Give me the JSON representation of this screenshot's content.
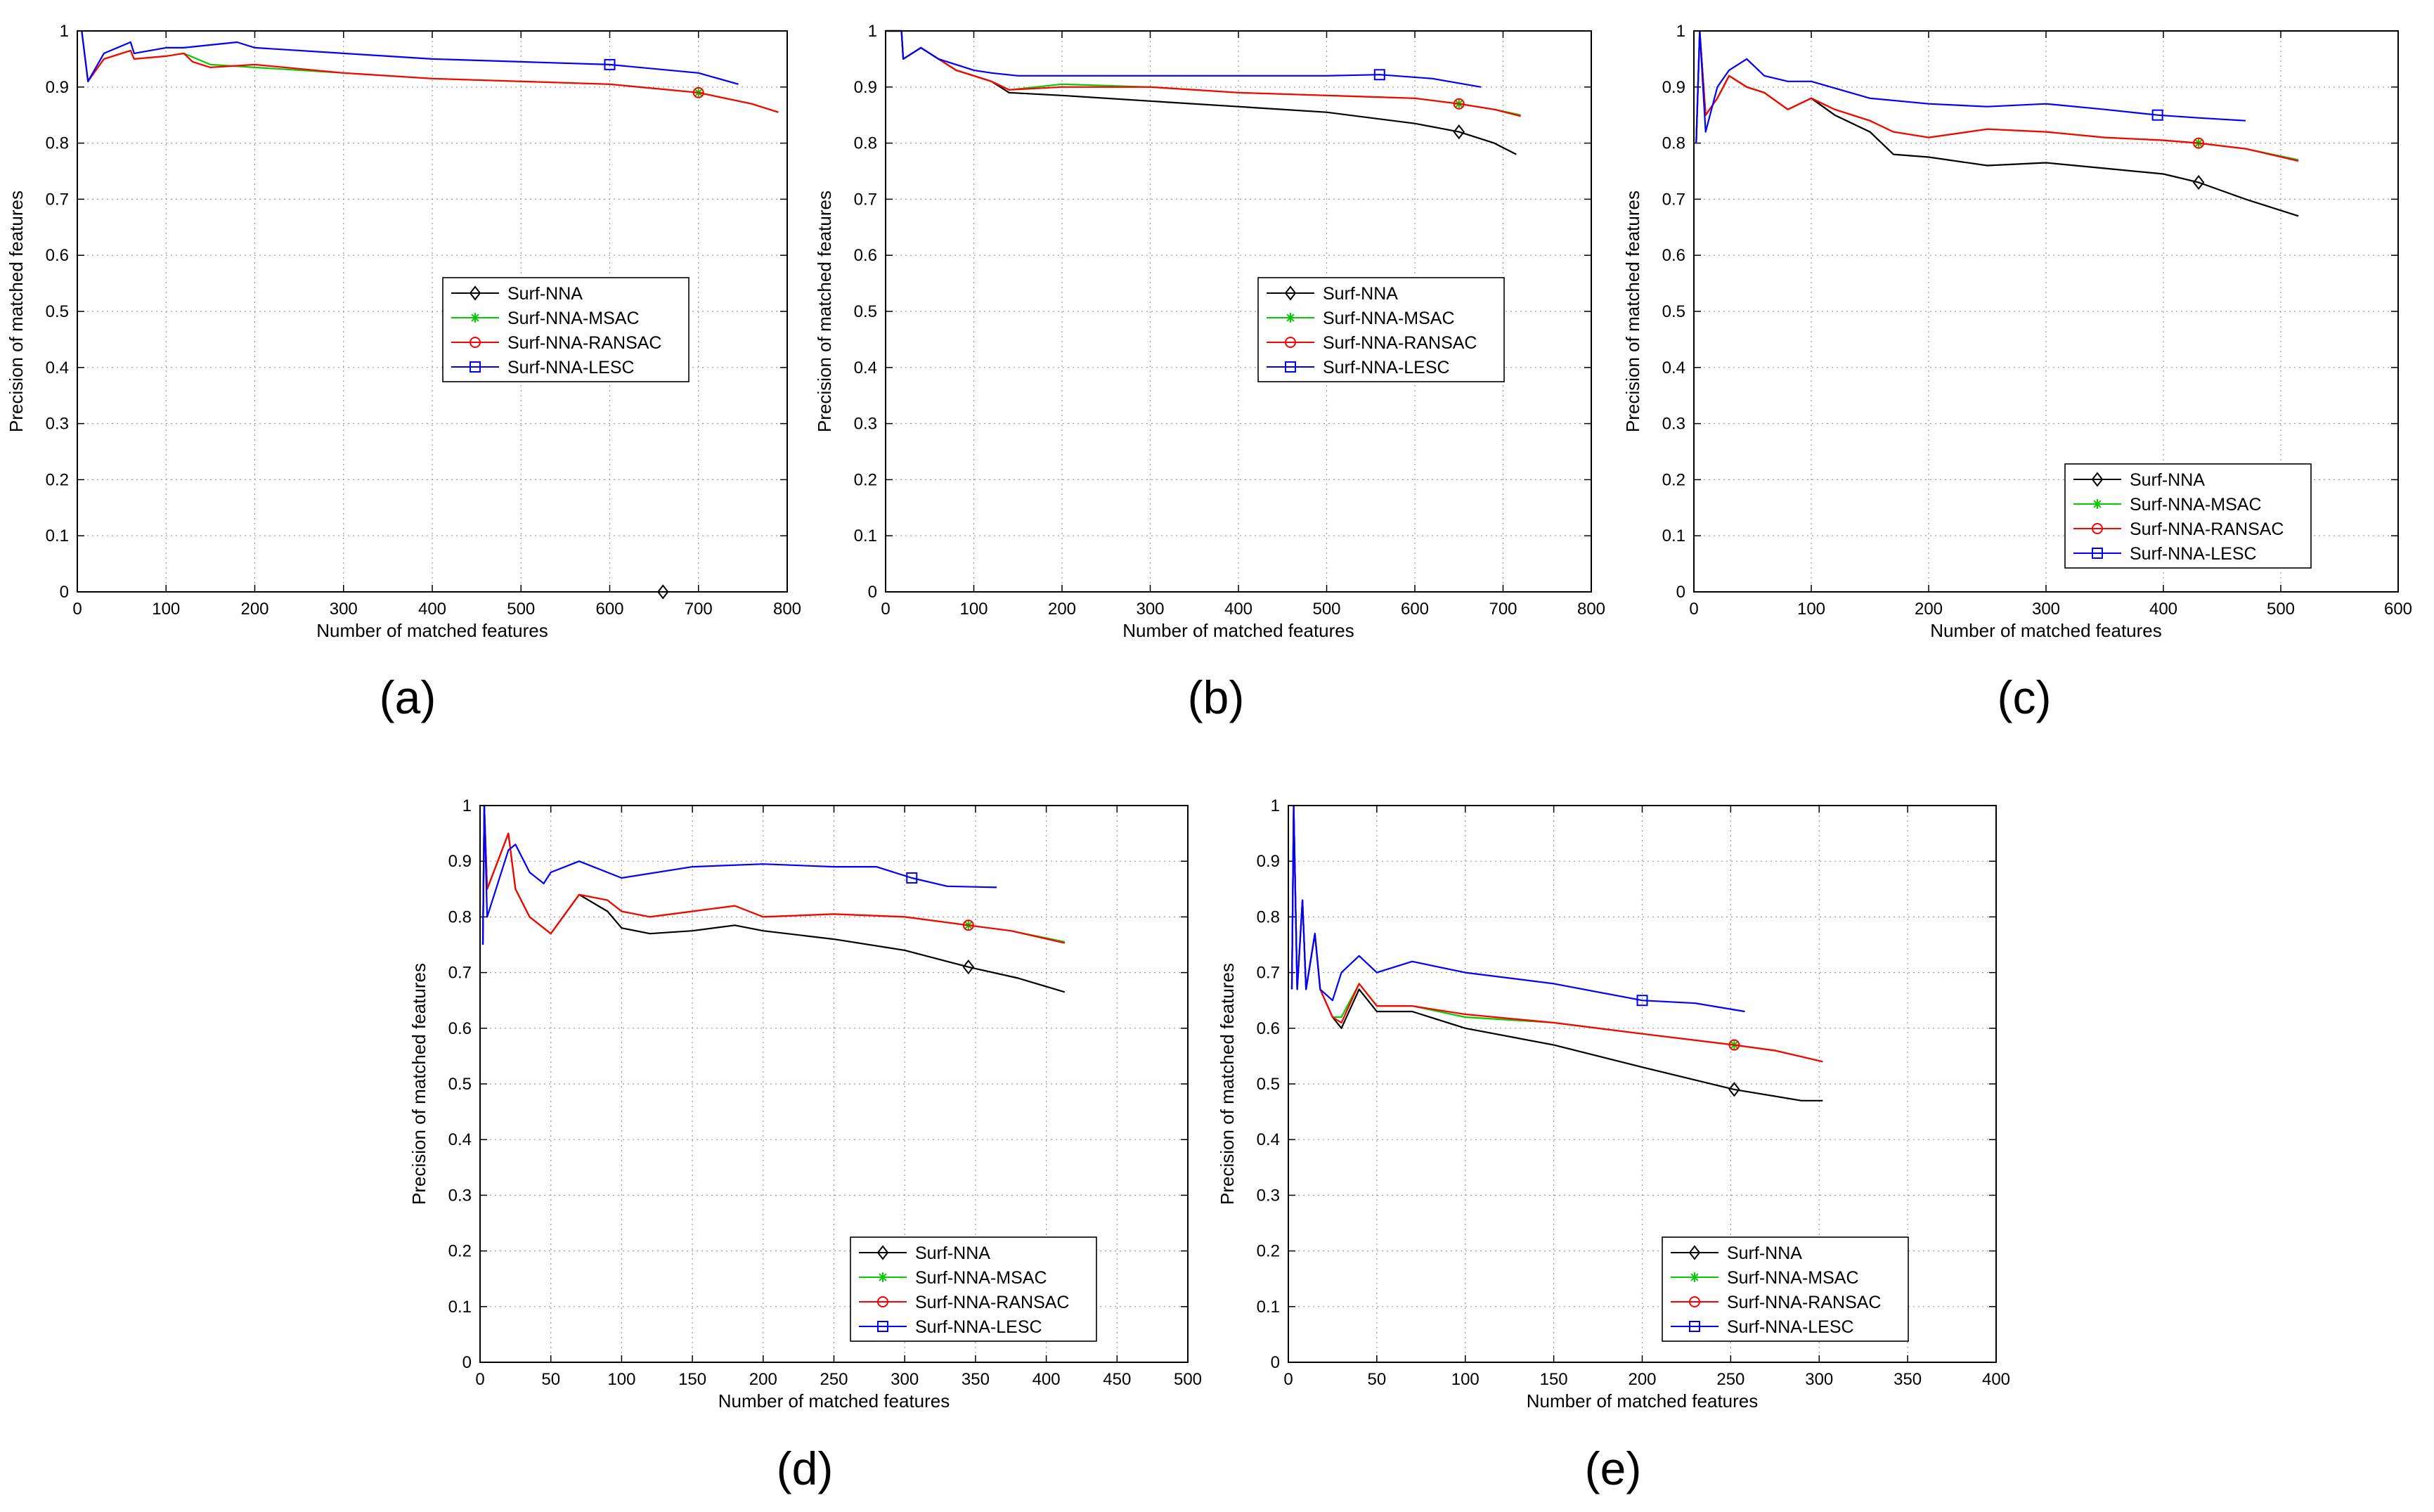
{
  "figure": {
    "panel_labels": [
      "(a)",
      "(b)",
      "(c)",
      "(d)",
      "(e)"
    ]
  },
  "colors": {
    "Surf-NNA": "#000000",
    "Surf-NNA-MSAC": "#00cc00",
    "Surf-NNA-RANSAC": "#ff0000",
    "Surf-NNA-LESC": "#0000ff",
    "grid": "#999999"
  },
  "chart_data": [
    {
      "type": "line",
      "label": "(a)",
      "xlabel": "Number of matched features",
      "ylabel": "Precision of matched features",
      "xlim": [
        0,
        800
      ],
      "ylim": [
        0,
        1
      ],
      "xticks": [
        "0",
        "100",
        "200",
        "300",
        "400",
        "500",
        "600",
        "700",
        "800"
      ],
      "yticks": [
        "0",
        "0.1",
        "0.2",
        "0.3",
        "0.4",
        "0.5",
        "0.6",
        "0.7",
        "0.8",
        "0.9",
        "1"
      ],
      "grid": true,
      "legend_position": "center",
      "series": [
        {
          "name": "Surf-NNA",
          "marker": "diamond",
          "x": [
            660
          ],
          "y": [
            0.0
          ]
        },
        {
          "name": "Surf-NNA-MSAC",
          "marker": "star",
          "x": [
            5,
            12,
            30,
            60,
            64,
            100,
            120,
            150,
            200,
            300,
            400,
            500,
            600,
            700,
            760,
            790
          ],
          "y": [
            1.0,
            0.91,
            0.95,
            0.965,
            0.95,
            0.955,
            0.96,
            0.94,
            0.935,
            0.925,
            0.915,
            0.91,
            0.905,
            0.89,
            0.87,
            0.855
          ]
        },
        {
          "name": "Surf-NNA-RANSAC",
          "marker": "circle",
          "x": [
            5,
            12,
            30,
            60,
            64,
            100,
            120,
            130,
            150,
            200,
            300,
            400,
            500,
            600,
            700,
            760,
            790
          ],
          "y": [
            1.0,
            0.91,
            0.95,
            0.965,
            0.95,
            0.955,
            0.96,
            0.945,
            0.935,
            0.94,
            0.925,
            0.915,
            0.91,
            0.905,
            0.89,
            0.87,
            0.855
          ]
        },
        {
          "name": "Surf-NNA-LESC",
          "marker": "square",
          "x": [
            5,
            12,
            30,
            60,
            64,
            100,
            120,
            180,
            200,
            300,
            400,
            500,
            600,
            700,
            745
          ],
          "y": [
            1.0,
            0.91,
            0.96,
            0.98,
            0.96,
            0.97,
            0.97,
            0.98,
            0.97,
            0.96,
            0.95,
            0.945,
            0.94,
            0.925,
            0.905
          ]
        }
      ]
    },
    {
      "type": "line",
      "label": "(b)",
      "xlabel": "Number of matched features",
      "ylabel": "Precision of matched features",
      "xlim": [
        0,
        800
      ],
      "ylim": [
        0,
        1
      ],
      "xticks": [
        "0",
        "100",
        "200",
        "300",
        "400",
        "500",
        "600",
        "700",
        "800"
      ],
      "yticks": [
        "0",
        "0.1",
        "0.2",
        "0.3",
        "0.4",
        "0.5",
        "0.6",
        "0.7",
        "0.8",
        "0.9",
        "1"
      ],
      "grid": true,
      "legend_position": "center",
      "series": [
        {
          "name": "Surf-NNA",
          "marker": "diamond",
          "x": [
            0,
            18,
            20,
            40,
            60,
            80,
            100,
            120,
            140,
            200,
            300,
            400,
            500,
            600,
            650,
            690,
            715
          ],
          "y": [
            1.0,
            1.0,
            0.95,
            0.97,
            0.95,
            0.93,
            0.92,
            0.91,
            0.89,
            0.885,
            0.875,
            0.865,
            0.855,
            0.835,
            0.82,
            0.8,
            0.78
          ]
        },
        {
          "name": "Surf-NNA-MSAC",
          "marker": "star",
          "x": [
            0,
            18,
            20,
            40,
            60,
            80,
            100,
            120,
            140,
            200,
            300,
            400,
            500,
            600,
            650,
            690,
            720
          ],
          "y": [
            1.0,
            1.0,
            0.95,
            0.97,
            0.95,
            0.93,
            0.92,
            0.91,
            0.895,
            0.905,
            0.9,
            0.89,
            0.885,
            0.88,
            0.87,
            0.86,
            0.85
          ]
        },
        {
          "name": "Surf-NNA-RANSAC",
          "marker": "circle",
          "x": [
            0,
            18,
            20,
            40,
            60,
            80,
            100,
            120,
            140,
            200,
            300,
            400,
            500,
            600,
            650,
            690,
            720
          ],
          "y": [
            1.0,
            1.0,
            0.95,
            0.97,
            0.95,
            0.93,
            0.92,
            0.91,
            0.895,
            0.9,
            0.9,
            0.89,
            0.885,
            0.88,
            0.87,
            0.86,
            0.848
          ]
        },
        {
          "name": "Surf-NNA-LESC",
          "marker": "square",
          "x": [
            0,
            18,
            20,
            40,
            60,
            80,
            100,
            120,
            150,
            200,
            300,
            400,
            500,
            560,
            620,
            675
          ],
          "y": [
            1.0,
            1.0,
            0.95,
            0.97,
            0.95,
            0.94,
            0.93,
            0.925,
            0.92,
            0.92,
            0.92,
            0.92,
            0.92,
            0.922,
            0.915,
            0.9
          ]
        }
      ]
    },
    {
      "type": "line",
      "label": "(c)",
      "xlabel": "Number of matched features",
      "ylabel": "Precision of matched features",
      "xlim": [
        0,
        600
      ],
      "ylim": [
        0,
        1
      ],
      "xticks": [
        "0",
        "100",
        "200",
        "300",
        "400",
        "500",
        "600"
      ],
      "yticks": [
        "0",
        "0.1",
        "0.2",
        "0.3",
        "0.4",
        "0.5",
        "0.6",
        "0.7",
        "0.8",
        "0.9",
        "1"
      ],
      "grid": true,
      "legend_position": "bottom-right",
      "series": [
        {
          "name": "Surf-NNA",
          "marker": "diamond",
          "x": [
            2,
            5,
            10,
            20,
            30,
            45,
            60,
            80,
            100,
            120,
            150,
            170,
            200,
            250,
            300,
            350,
            400,
            430,
            470,
            515
          ],
          "y": [
            0.8,
            1.0,
            0.85,
            0.88,
            0.92,
            0.9,
            0.89,
            0.86,
            0.88,
            0.85,
            0.82,
            0.78,
            0.775,
            0.76,
            0.765,
            0.755,
            0.745,
            0.73,
            0.7,
            0.67
          ]
        },
        {
          "name": "Surf-NNA-MSAC",
          "marker": "star",
          "x": [
            2,
            5,
            10,
            20,
            30,
            45,
            60,
            80,
            100,
            120,
            150,
            170,
            200,
            250,
            300,
            350,
            400,
            430,
            470,
            515
          ],
          "y": [
            0.8,
            1.0,
            0.85,
            0.88,
            0.92,
            0.9,
            0.89,
            0.86,
            0.88,
            0.86,
            0.84,
            0.82,
            0.81,
            0.825,
            0.82,
            0.81,
            0.805,
            0.8,
            0.79,
            0.77
          ]
        },
        {
          "name": "Surf-NNA-RANSAC",
          "marker": "circle",
          "x": [
            2,
            5,
            10,
            20,
            30,
            45,
            60,
            80,
            100,
            120,
            150,
            170,
            200,
            250,
            300,
            350,
            400,
            430,
            470,
            515
          ],
          "y": [
            0.8,
            1.0,
            0.85,
            0.88,
            0.92,
            0.9,
            0.89,
            0.86,
            0.88,
            0.86,
            0.84,
            0.82,
            0.81,
            0.825,
            0.82,
            0.81,
            0.805,
            0.8,
            0.79,
            0.768
          ]
        },
        {
          "name": "Surf-NNA-LESC",
          "marker": "square",
          "x": [
            2,
            5,
            10,
            20,
            30,
            45,
            60,
            80,
            100,
            150,
            200,
            250,
            300,
            350,
            395,
            430,
            470
          ],
          "y": [
            0.8,
            1.0,
            0.82,
            0.9,
            0.93,
            0.95,
            0.92,
            0.91,
            0.91,
            0.88,
            0.87,
            0.865,
            0.87,
            0.86,
            0.85,
            0.845,
            0.84
          ]
        }
      ]
    },
    {
      "type": "line",
      "label": "(d)",
      "xlabel": "Number of matched features",
      "ylabel": "Precision of matched features",
      "xlim": [
        0,
        500
      ],
      "ylim": [
        0,
        1
      ],
      "xticks": [
        "0",
        "50",
        "100",
        "150",
        "200",
        "250",
        "300",
        "350",
        "400",
        "450",
        "500"
      ],
      "yticks": [
        "0",
        "0.1",
        "0.2",
        "0.3",
        "0.4",
        "0.5",
        "0.6",
        "0.7",
        "0.8",
        "0.9",
        "1"
      ],
      "grid": true,
      "legend_position": "bottom-right",
      "series": [
        {
          "name": "Surf-NNA",
          "marker": "diamond",
          "x": [
            2,
            3,
            5,
            20,
            25,
            35,
            50,
            70,
            90,
            100,
            120,
            150,
            180,
            200,
            250,
            300,
            345,
            380,
            413
          ],
          "y": [
            0.75,
            1.0,
            0.85,
            0.95,
            0.85,
            0.8,
            0.77,
            0.84,
            0.81,
            0.78,
            0.77,
            0.775,
            0.785,
            0.775,
            0.76,
            0.74,
            0.71,
            0.69,
            0.665
          ]
        },
        {
          "name": "Surf-NNA-MSAC",
          "marker": "star",
          "x": [
            2,
            3,
            5,
            20,
            25,
            35,
            50,
            70,
            90,
            100,
            120,
            150,
            180,
            200,
            250,
            300,
            345,
            375,
            413
          ],
          "y": [
            0.75,
            1.0,
            0.85,
            0.95,
            0.85,
            0.8,
            0.77,
            0.84,
            0.83,
            0.81,
            0.8,
            0.81,
            0.82,
            0.8,
            0.805,
            0.8,
            0.785,
            0.775,
            0.755
          ]
        },
        {
          "name": "Surf-NNA-RANSAC",
          "marker": "circle",
          "x": [
            2,
            3,
            5,
            20,
            25,
            35,
            50,
            70,
            90,
            100,
            120,
            150,
            180,
            200,
            250,
            300,
            345,
            375,
            413
          ],
          "y": [
            0.75,
            1.0,
            0.85,
            0.95,
            0.85,
            0.8,
            0.77,
            0.84,
            0.83,
            0.81,
            0.8,
            0.81,
            0.82,
            0.8,
            0.805,
            0.8,
            0.785,
            0.775,
            0.753
          ]
        },
        {
          "name": "Surf-NNA-LESC",
          "marker": "square",
          "x": [
            2,
            3,
            5,
            20,
            25,
            35,
            45,
            50,
            70,
            100,
            150,
            200,
            250,
            280,
            305,
            330,
            365
          ],
          "y": [
            0.75,
            1.0,
            0.8,
            0.92,
            0.93,
            0.88,
            0.86,
            0.88,
            0.9,
            0.87,
            0.89,
            0.895,
            0.89,
            0.89,
            0.87,
            0.855,
            0.853
          ]
        }
      ]
    },
    {
      "type": "line",
      "label": "(e)",
      "xlabel": "Number of matched features",
      "ylabel": "Precision of matched features",
      "xlim": [
        0,
        400
      ],
      "ylim": [
        0,
        1
      ],
      "xticks": [
        "0",
        "50",
        "100",
        "150",
        "200",
        "250",
        "300",
        "350",
        "400"
      ],
      "yticks": [
        "0",
        "0.1",
        "0.2",
        "0.3",
        "0.4",
        "0.5",
        "0.6",
        "0.7",
        "0.8",
        "0.9",
        "1"
      ],
      "grid": true,
      "legend_position": "bottom-right",
      "series": [
        {
          "name": "Surf-NNA",
          "marker": "diamond",
          "x": [
            2,
            3,
            5,
            8,
            10,
            15,
            18,
            25,
            30,
            40,
            50,
            70,
            100,
            150,
            200,
            252,
            290,
            302
          ],
          "y": [
            0.67,
            1.0,
            0.67,
            0.83,
            0.67,
            0.77,
            0.67,
            0.62,
            0.6,
            0.67,
            0.63,
            0.63,
            0.6,
            0.57,
            0.53,
            0.49,
            0.47,
            0.47
          ]
        },
        {
          "name": "Surf-NNA-MSAC",
          "marker": "star",
          "x": [
            2,
            3,
            5,
            8,
            10,
            15,
            18,
            25,
            30,
            40,
            50,
            70,
            100,
            150,
            200,
            252,
            275,
            302
          ],
          "y": [
            0.67,
            1.0,
            0.67,
            0.83,
            0.67,
            0.77,
            0.67,
            0.62,
            0.62,
            0.68,
            0.64,
            0.64,
            0.62,
            0.61,
            0.59,
            0.57,
            0.56,
            0.54
          ]
        },
        {
          "name": "Surf-NNA-RANSAC",
          "marker": "circle",
          "x": [
            2,
            3,
            5,
            8,
            10,
            15,
            18,
            25,
            30,
            40,
            50,
            70,
            100,
            150,
            200,
            252,
            275,
            302
          ],
          "y": [
            0.67,
            1.0,
            0.67,
            0.83,
            0.67,
            0.77,
            0.67,
            0.62,
            0.61,
            0.68,
            0.64,
            0.64,
            0.625,
            0.61,
            0.59,
            0.57,
            0.56,
            0.54
          ]
        },
        {
          "name": "Surf-NNA-LESC",
          "marker": "square",
          "x": [
            2,
            3,
            5,
            8,
            10,
            15,
            18,
            25,
            30,
            40,
            50,
            70,
            100,
            150,
            200,
            230,
            258
          ],
          "y": [
            0.67,
            1.0,
            0.67,
            0.83,
            0.67,
            0.77,
            0.67,
            0.65,
            0.7,
            0.73,
            0.7,
            0.72,
            0.7,
            0.68,
            0.65,
            0.645,
            0.63
          ]
        }
      ]
    }
  ]
}
